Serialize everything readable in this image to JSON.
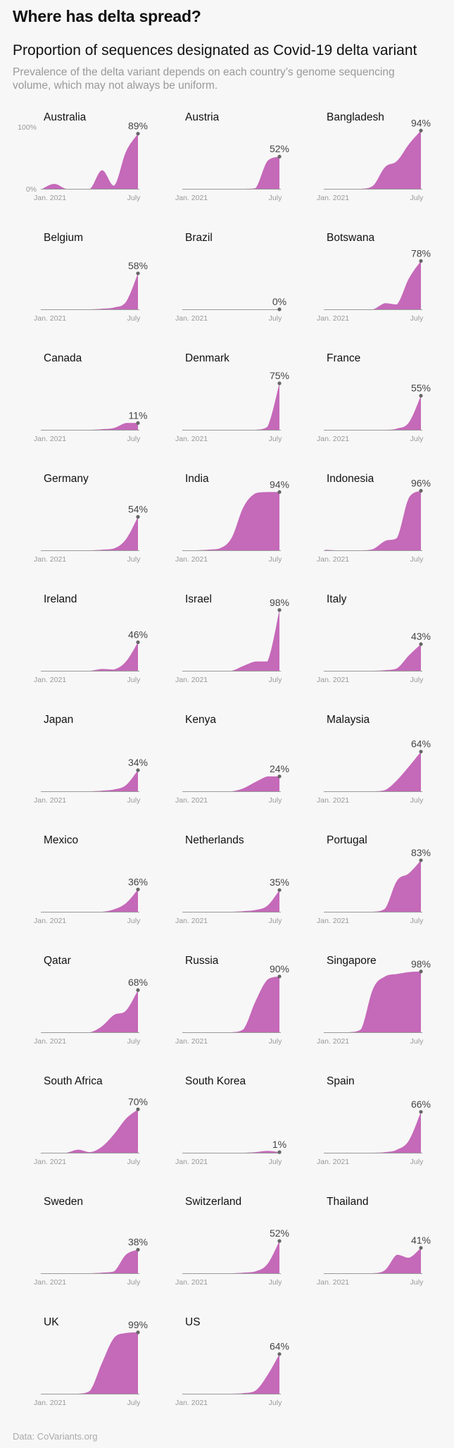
{
  "headline": "Where has delta spread?",
  "title": "Proportion of sequences designated as Covid-19 delta variant",
  "subtitle": "Prevalence of the delta variant depends on each country’s genome sequencing volume, which may not always be uniform.",
  "source": "Data: CoVariants.org",
  "colors": {
    "area": "#c569b9",
    "axis": "#9a9a9a",
    "dot": "#666666",
    "text": "#111111",
    "muted": "#999999"
  },
  "chart_data": {
    "type": "area",
    "x_tick_labels": [
      "Jan. 2021",
      "July"
    ],
    "y_tick_labels": [
      "100%",
      "0%"
    ],
    "ylim": [
      0,
      100
    ],
    "x": [
      "2020-12",
      "2021-01",
      "2021-02",
      "2021-03",
      "2021-04",
      "2021-05",
      "2021-06",
      "2021-07",
      "2021-08"
    ],
    "series": [
      {
        "name": "Australia",
        "values": [
          0,
          8,
          0,
          0,
          0,
          30,
          5,
          60,
          89
        ],
        "label": "89%"
      },
      {
        "name": "Austria",
        "values": [
          0,
          0,
          0,
          0,
          0,
          0,
          1,
          45,
          52
        ],
        "label": "52%"
      },
      {
        "name": "Bangladesh",
        "values": [
          0,
          0,
          0,
          0,
          5,
          35,
          45,
          72,
          94
        ],
        "label": "94%"
      },
      {
        "name": "Belgium",
        "values": [
          0,
          0,
          0,
          0,
          0,
          1,
          3,
          12,
          58
        ],
        "label": "58%"
      },
      {
        "name": "Brazil",
        "values": [
          0,
          0,
          0,
          0,
          0,
          0,
          0,
          0,
          0
        ],
        "label": "0%"
      },
      {
        "name": "Botswana",
        "values": [
          0,
          0,
          0,
          0,
          0,
          10,
          8,
          50,
          78
        ],
        "label": "78%"
      },
      {
        "name": "Canada",
        "values": [
          0,
          0,
          0,
          0,
          0,
          1,
          3,
          11,
          11
        ],
        "label": "11%"
      },
      {
        "name": "Denmark",
        "values": [
          0,
          0,
          0,
          0,
          0,
          0,
          0,
          5,
          75
        ],
        "label": "75%"
      },
      {
        "name": "France",
        "values": [
          0,
          0,
          0,
          0,
          0,
          0,
          2,
          12,
          55
        ],
        "label": "55%"
      },
      {
        "name": "Germany",
        "values": [
          0,
          0,
          0,
          0,
          0,
          1,
          3,
          18,
          54
        ],
        "label": "54%"
      },
      {
        "name": "India",
        "values": [
          0,
          0,
          1,
          3,
          20,
          70,
          92,
          94,
          94
        ],
        "label": "94%"
      },
      {
        "name": "Indonesia",
        "values": [
          1,
          0,
          0,
          0,
          2,
          15,
          20,
          85,
          96
        ],
        "label": "96%"
      },
      {
        "name": "Ireland",
        "values": [
          0,
          0,
          0,
          0,
          0,
          3,
          2,
          15,
          46
        ],
        "label": "46%"
      },
      {
        "name": "Israel",
        "values": [
          0,
          0,
          0,
          0,
          0,
          8,
          15,
          15,
          98
        ],
        "label": "98%"
      },
      {
        "name": "Italy",
        "values": [
          0,
          0,
          0,
          0,
          0,
          1,
          4,
          25,
          43
        ],
        "label": "43%"
      },
      {
        "name": "Japan",
        "values": [
          0,
          0,
          0,
          0,
          0,
          1,
          3,
          10,
          34
        ],
        "label": "34%"
      },
      {
        "name": "Kenya",
        "values": [
          0,
          0,
          0,
          0,
          0,
          5,
          15,
          24,
          24
        ],
        "label": "24%"
      },
      {
        "name": "Malaysia",
        "values": [
          0,
          0,
          0,
          0,
          0,
          2,
          18,
          40,
          64
        ],
        "label": "64%"
      },
      {
        "name": "Mexico",
        "values": [
          0,
          0,
          0,
          0,
          0,
          0,
          4,
          14,
          36
        ],
        "label": "36%"
      },
      {
        "name": "Netherlands",
        "values": [
          0,
          0,
          0,
          0,
          0,
          1,
          3,
          10,
          35
        ],
        "label": "35%"
      },
      {
        "name": "Portugal",
        "values": [
          0,
          0,
          0,
          0,
          0,
          5,
          50,
          62,
          83
        ],
        "label": "83%"
      },
      {
        "name": "Qatar",
        "values": [
          0,
          0,
          0,
          0,
          0,
          10,
          28,
          35,
          68
        ],
        "label": "68%"
      },
      {
        "name": "Russia",
        "values": [
          0,
          0,
          0,
          0,
          0,
          5,
          50,
          85,
          90
        ],
        "label": "90%"
      },
      {
        "name": "Singapore",
        "values": [
          0,
          0,
          0,
          5,
          70,
          90,
          94,
          97,
          98
        ],
        "label": "98%"
      },
      {
        "name": "South Africa",
        "values": [
          0,
          0,
          0,
          5,
          1,
          10,
          30,
          55,
          70
        ],
        "label": "70%"
      },
      {
        "name": "South Korea",
        "values": [
          0,
          0,
          0,
          0,
          0,
          0,
          1,
          3,
          1
        ],
        "label": "1%"
      },
      {
        "name": "Spain",
        "values": [
          0,
          0,
          0,
          0,
          0,
          1,
          5,
          20,
          66
        ],
        "label": "66%"
      },
      {
        "name": "Sweden",
        "values": [
          0,
          0,
          0,
          0,
          0,
          1,
          3,
          30,
          38
        ],
        "label": "38%"
      },
      {
        "name": "Switzerland",
        "values": [
          0,
          0,
          0,
          0,
          0,
          1,
          3,
          15,
          52
        ],
        "label": "52%"
      },
      {
        "name": "Thailand",
        "values": [
          0,
          0,
          0,
          0,
          0,
          5,
          30,
          25,
          41
        ],
        "label": "41%"
      },
      {
        "name": "UK",
        "values": [
          0,
          0,
          0,
          0,
          5,
          50,
          90,
          98,
          99
        ],
        "label": "99%"
      },
      {
        "name": "US",
        "values": [
          0,
          0,
          0,
          0,
          0,
          1,
          5,
          30,
          64
        ],
        "label": "64%"
      }
    ]
  }
}
